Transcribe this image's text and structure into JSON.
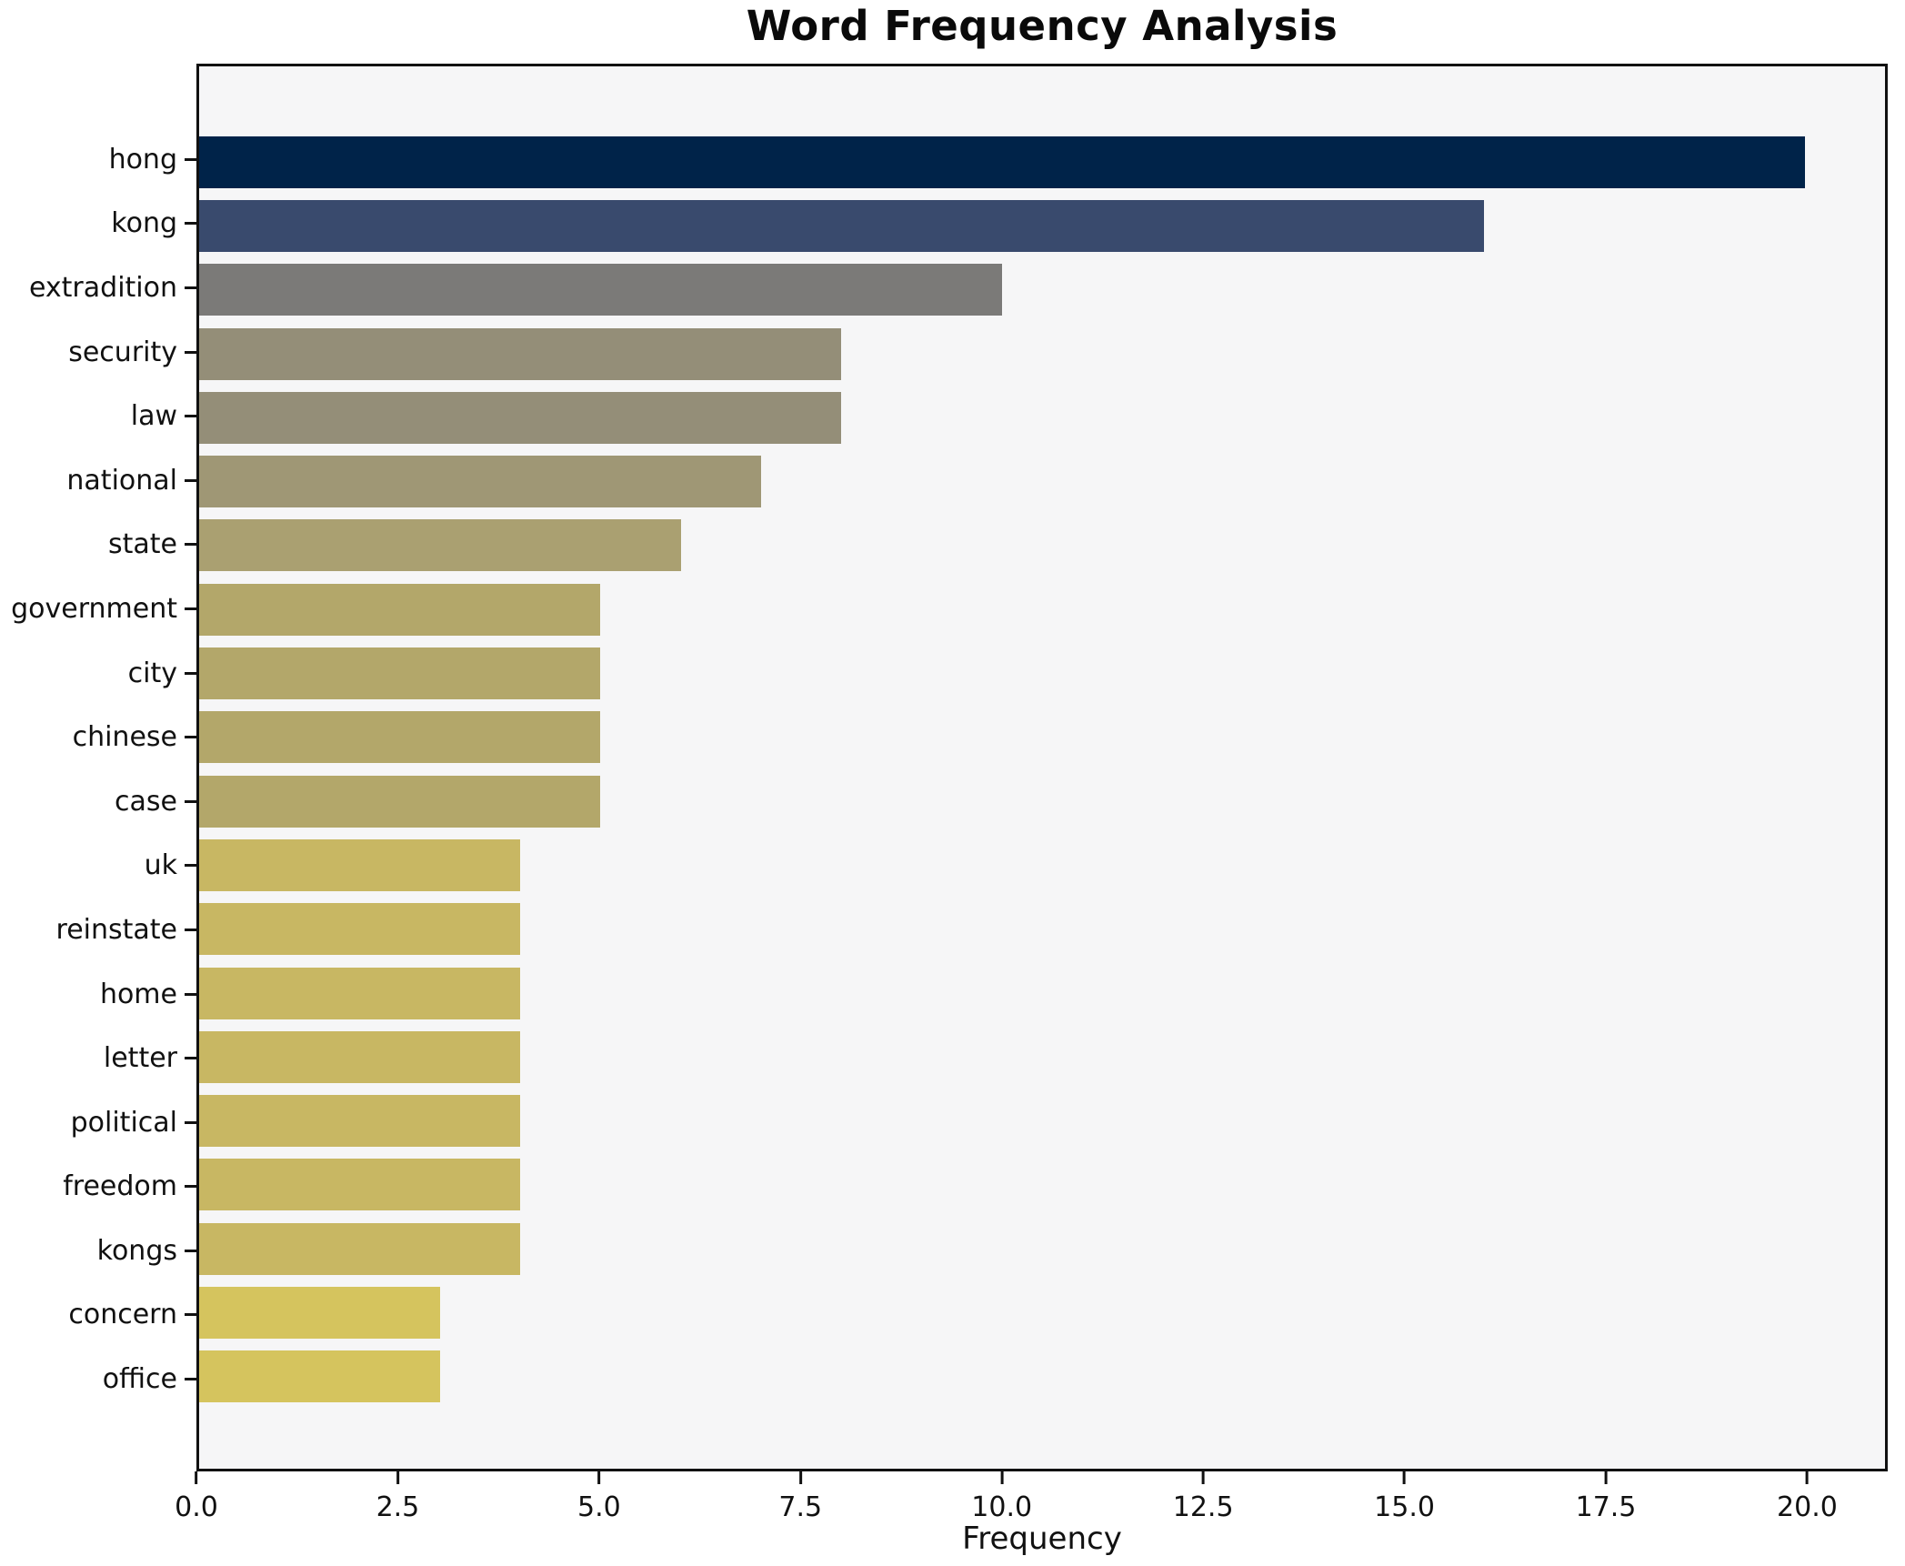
{
  "chart_data": {
    "type": "bar",
    "orientation": "horizontal",
    "title": "Word Frequency Analysis",
    "xlabel": "Frequency",
    "ylabel": "",
    "categories": [
      "hong",
      "kong",
      "extradition",
      "security",
      "law",
      "national",
      "state",
      "government",
      "city",
      "chinese",
      "case",
      "uk",
      "reinstate",
      "home",
      "letter",
      "political",
      "freedom",
      "kongs",
      "concern",
      "office"
    ],
    "values": [
      20,
      16,
      10,
      8,
      8,
      7,
      6,
      5,
      5,
      5,
      5,
      4,
      4,
      4,
      4,
      4,
      4,
      4,
      3,
      3
    ],
    "colors": [
      "#002349",
      "#394a6d",
      "#7b7a78",
      "#948e78",
      "#948e78",
      "#9f9775",
      "#aaa071",
      "#b3a76a",
      "#b3a76a",
      "#b3a76a",
      "#b3a76a",
      "#c8b763",
      "#c8b763",
      "#c8b763",
      "#c8b763",
      "#c8b763",
      "#c8b763",
      "#c8b763",
      "#d5c45e",
      "#d5c45e"
    ],
    "xlim": [
      0,
      21
    ],
    "xticks": [
      0,
      2.5,
      5,
      7.5,
      10,
      12.5,
      15,
      17.5,
      20
    ],
    "xtick_labels": [
      "0.0",
      "2.5",
      "5.0",
      "7.5",
      "10.0",
      "12.5",
      "15.0",
      "17.5",
      "20.0"
    ],
    "grid": false,
    "legend_position": "none",
    "plot_bg": "#f6f6f7",
    "axis_color": "#111111",
    "text_color": "#111111"
  }
}
